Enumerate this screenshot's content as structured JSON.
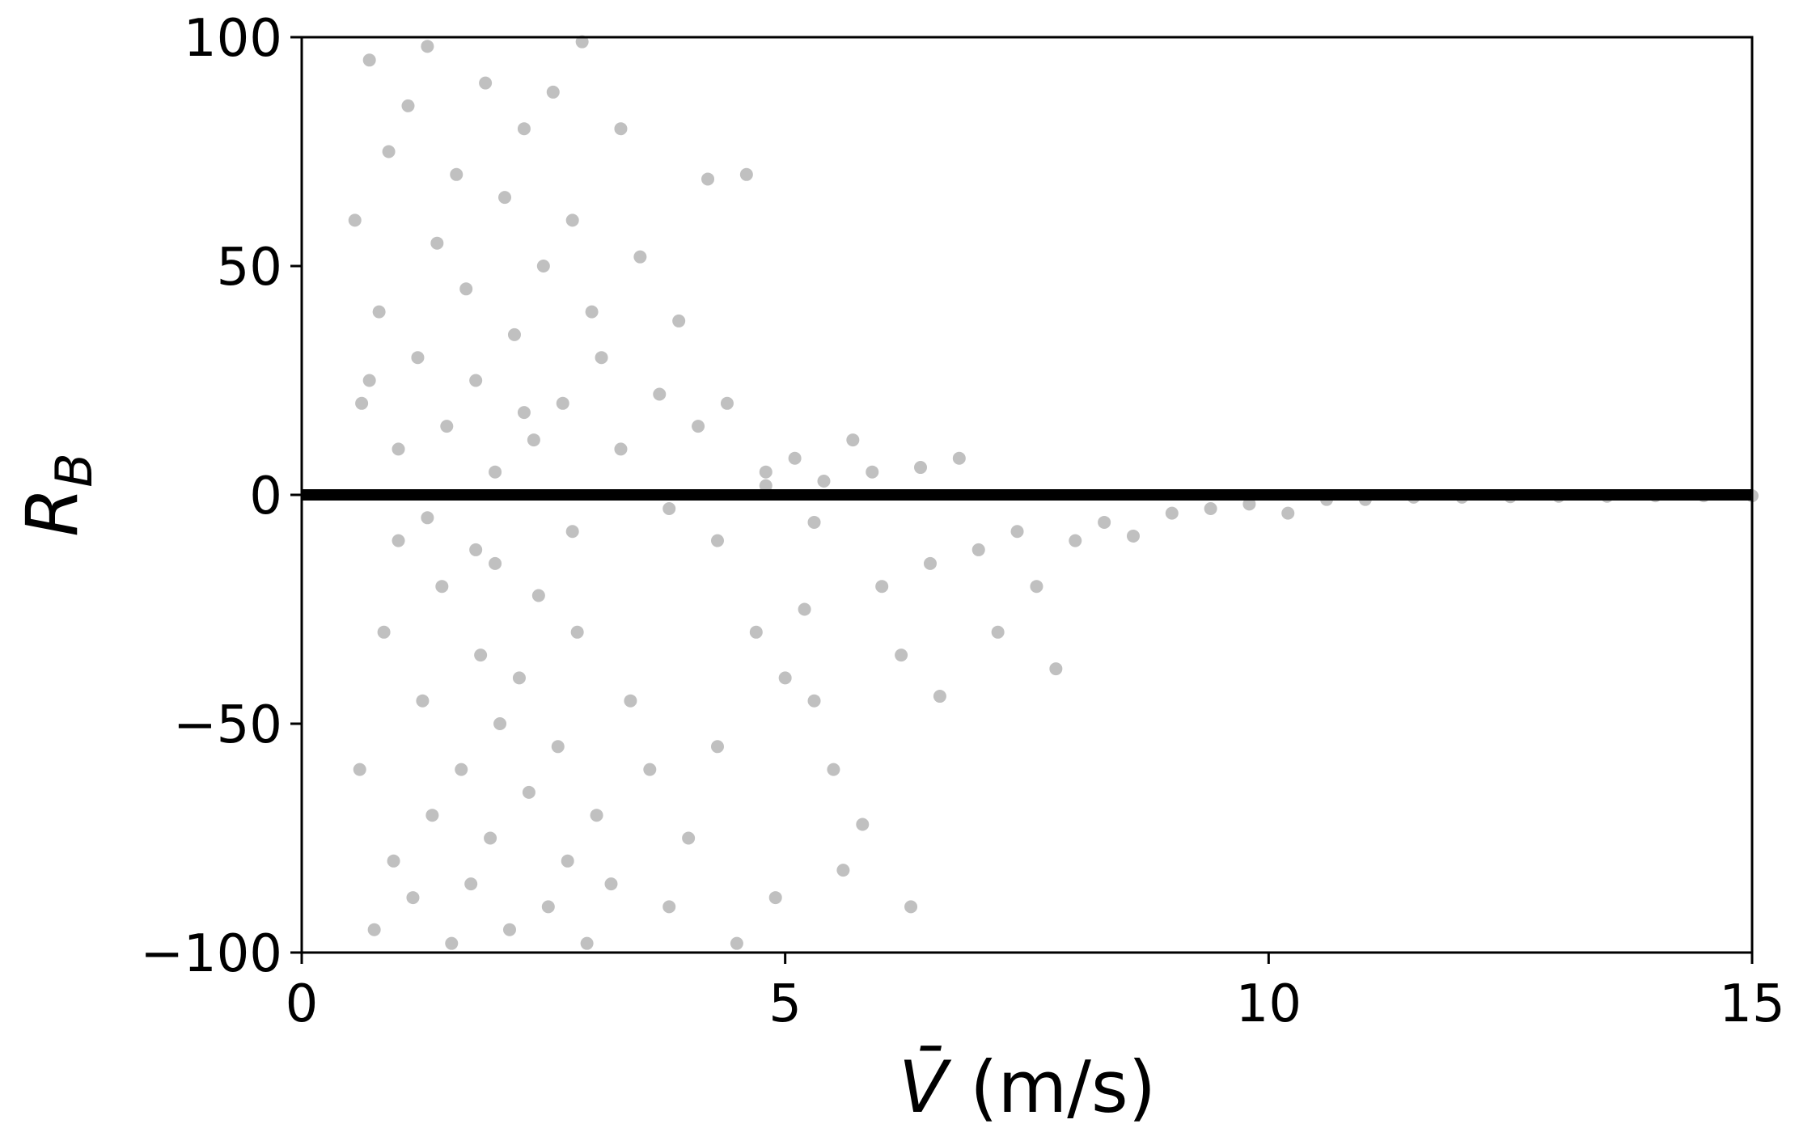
{
  "chart_data": {
    "type": "scatter",
    "ylabel": "R",
    "ylabel_sub": "B",
    "xlabel_symbol": "V̄",
    "xlabel_unit": "(m/s)",
    "xlim": [
      0,
      15
    ],
    "xticks": [
      0,
      5,
      10,
      15
    ],
    "ylim": [
      -100,
      100
    ],
    "yticks": [
      {
        "value": -100,
        "label": "−100"
      },
      {
        "value": -50,
        "label": "−50"
      },
      0,
      50,
      100
    ],
    "grid": false,
    "hline": 0,
    "hline_color": "#000000",
    "series": [
      {
        "color": "#c0c0c0",
        "x": [
          0.55,
          0.6,
          0.62,
          0.7,
          0.75,
          0.8,
          0.85,
          0.9,
          0.95,
          1.0,
          1.1,
          1.15,
          1.2,
          1.25,
          1.3,
          1.35,
          1.4,
          1.45,
          1.5,
          1.55,
          1.6,
          1.65,
          1.7,
          1.75,
          1.8,
          1.85,
          1.9,
          1.95,
          2.0,
          2.05,
          2.1,
          2.15,
          2.2,
          2.25,
          2.3,
          2.35,
          2.4,
          2.45,
          2.5,
          2.55,
          2.6,
          2.65,
          2.7,
          2.75,
          2.8,
          2.85,
          2.9,
          2.95,
          3.0,
          3.05,
          3.1,
          3.2,
          3.3,
          3.4,
          3.5,
          3.6,
          3.7,
          3.8,
          3.9,
          4.0,
          4.1,
          4.2,
          4.3,
          4.4,
          4.5,
          4.6,
          4.7,
          4.8,
          4.9,
          5.0,
          5.1,
          5.2,
          5.3,
          5.4,
          5.5,
          5.6,
          5.7,
          5.8,
          5.9,
          6.0,
          6.2,
          6.3,
          6.4,
          6.5,
          6.6,
          6.8,
          7.0,
          7.2,
          7.4,
          7.6,
          7.8,
          8.0,
          8.3,
          8.6,
          9.0,
          9.4,
          9.8,
          10.2,
          10.6,
          11.0,
          11.5,
          12.0,
          12.5,
          13.0,
          13.5,
          14.0,
          14.5,
          15.0,
          1.0,
          2.0,
          0.7,
          1.3,
          1.8,
          2.3,
          2.8,
          3.3,
          3.8,
          4.3,
          4.8,
          5.3
        ],
        "values": [
          60,
          -60,
          20,
          95,
          -95,
          40,
          -30,
          75,
          -80,
          10,
          85,
          -88,
          30,
          -45,
          98,
          -70,
          55,
          -20,
          15,
          -98,
          70,
          -60,
          45,
          -85,
          25,
          -35,
          90,
          -75,
          5,
          -50,
          65,
          -95,
          35,
          -40,
          80,
          -65,
          12,
          -22,
          50,
          -90,
          88,
          -55,
          20,
          -80,
          60,
          -30,
          99,
          -98,
          40,
          -70,
          30,
          -85,
          80,
          -45,
          52,
          -60,
          22,
          -90,
          38,
          -75,
          15,
          69,
          -55,
          20,
          -98,
          70,
          -30,
          5,
          -88,
          -40,
          8,
          -25,
          -45,
          3,
          -60,
          -82,
          12,
          -72,
          5,
          -20,
          -35,
          -90,
          6,
          -15,
          -44,
          8,
          -12,
          -30,
          -8,
          -20,
          -38,
          -10,
          -6,
          -9,
          -4,
          -3,
          -2,
          -4,
          -1,
          -1,
          -0.5,
          -0.5,
          -0.4,
          -0.3,
          -0.3,
          -0.2,
          -0.2,
          -0.2,
          -10,
          -15,
          25,
          -5,
          -12,
          18,
          -8,
          10,
          -3,
          -10,
          2,
          -6
        ]
      }
    ]
  }
}
